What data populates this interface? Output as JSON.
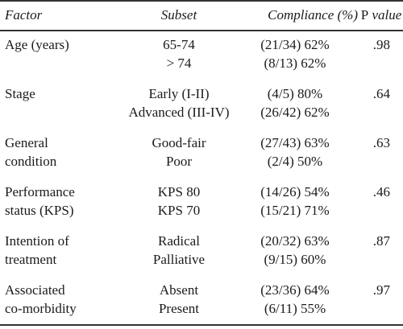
{
  "headers": {
    "factor": "Factor",
    "subset": "Subset",
    "compliance": "Compliance (%)",
    "p_prefix": "P",
    "p_suffix": "value"
  },
  "rows": [
    {
      "factor": [
        "Age (years)",
        ""
      ],
      "subsets": [
        "65-74",
        "> 74"
      ],
      "compliance": [
        "(21/34) 62%",
        "(8/13) 62%"
      ],
      "p": ".98"
    },
    {
      "factor": [
        "Stage",
        ""
      ],
      "subsets": [
        "Early (I-II)",
        "Advanced (III-IV)"
      ],
      "compliance": [
        "(4/5) 80%",
        "(26/42) 62%"
      ],
      "p": ".64"
    },
    {
      "factor": [
        "General",
        "condition"
      ],
      "subsets": [
        "Good-fair",
        "Poor"
      ],
      "compliance": [
        "(27/43) 63%",
        "(2/4) 50%"
      ],
      "p": ".63"
    },
    {
      "factor": [
        "Performance",
        "status (KPS)"
      ],
      "subsets": [
        "KPS 80",
        "KPS 70"
      ],
      "compliance": [
        "(14/26) 54%",
        "(15/21) 71%"
      ],
      "p": ".46"
    },
    {
      "factor": [
        "Intention of",
        "treatment"
      ],
      "subsets": [
        "Radical",
        "Palliative"
      ],
      "compliance": [
        "(20/32) 63%",
        "(9/15) 60%"
      ],
      "p": ".87"
    },
    {
      "factor": [
        "Associated",
        "co-morbidity"
      ],
      "subsets": [
        "Absent",
        "Present"
      ],
      "compliance": [
        "(23/36) 64%",
        "(6/11) 55%"
      ],
      "p": ".97"
    }
  ]
}
